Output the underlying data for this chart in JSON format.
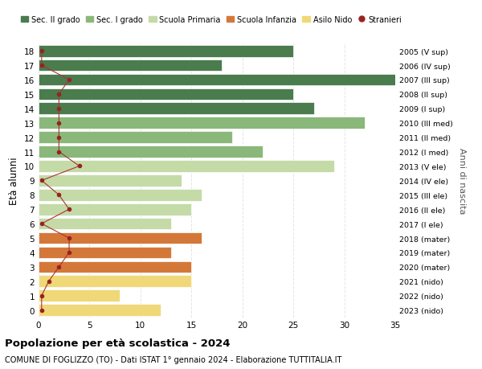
{
  "ages": [
    18,
    17,
    16,
    15,
    14,
    13,
    12,
    11,
    10,
    9,
    8,
    7,
    6,
    5,
    4,
    3,
    2,
    1,
    0
  ],
  "right_labels": [
    "2005 (V sup)",
    "2006 (IV sup)",
    "2007 (III sup)",
    "2008 (II sup)",
    "2009 (I sup)",
    "2010 (III med)",
    "2011 (II med)",
    "2012 (I med)",
    "2013 (V ele)",
    "2014 (IV ele)",
    "2015 (III ele)",
    "2016 (II ele)",
    "2017 (I ele)",
    "2018 (mater)",
    "2019 (mater)",
    "2020 (mater)",
    "2021 (nido)",
    "2022 (nido)",
    "2023 (nido)"
  ],
  "bar_values": [
    25,
    18,
    35,
    25,
    27,
    32,
    19,
    22,
    29,
    14,
    16,
    15,
    13,
    16,
    13,
    15,
    15,
    8,
    12
  ],
  "bar_colors": [
    "#4a7c4e",
    "#4a7c4e",
    "#4a7c4e",
    "#4a7c4e",
    "#4a7c4e",
    "#8ab87a",
    "#8ab87a",
    "#8ab87a",
    "#c4dba8",
    "#c4dba8",
    "#c4dba8",
    "#c4dba8",
    "#c4dba8",
    "#d4783a",
    "#d4783a",
    "#d4783a",
    "#f0d878",
    "#f0d878",
    "#f0d878"
  ],
  "stranieri_values": [
    0.3,
    0.3,
    3,
    2,
    2,
    2,
    2,
    2,
    4,
    0.3,
    2,
    3,
    0.3,
    3,
    3,
    2,
    1,
    0.3,
    0.3
  ],
  "title_bold": "Popolazione per età scolastica - 2024",
  "title_sub": "COMUNE DI FOGLIZZO (TO) - Dati ISTAT 1° gennaio 2024 - Elaborazione TUTTITALIA.IT",
  "ylabel_left": "Età alunni",
  "ylabel_right": "Anni di nascita",
  "xlim": [
    0,
    35
  ],
  "xticks": [
    0,
    5,
    10,
    15,
    20,
    25,
    30,
    35
  ],
  "legend_labels": [
    "Sec. II grado",
    "Sec. I grado",
    "Scuola Primaria",
    "Scuola Infanzia",
    "Asilo Nido",
    "Stranieri"
  ],
  "legend_colors": [
    "#4a7c4e",
    "#8ab87a",
    "#c4dba8",
    "#d4783a",
    "#f0d878",
    "#cc2222"
  ],
  "stranieri_color": "#992222",
  "stranieri_line_color": "#aa3333",
  "bg_color": "#ffffff",
  "grid_color": "#dddddd"
}
